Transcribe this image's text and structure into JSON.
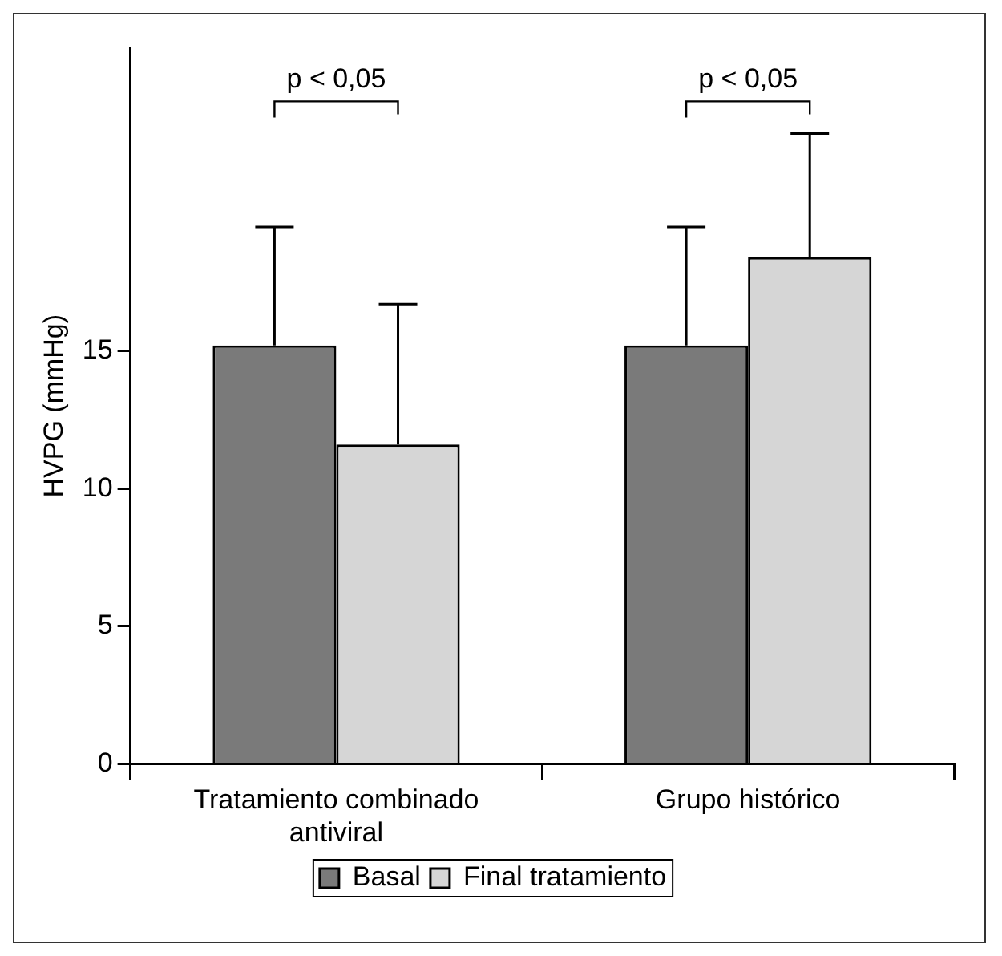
{
  "chart_data": {
    "type": "bar",
    "categories": [
      "Tratamiento combinado antiviral",
      "Grupo histórico"
    ],
    "series": [
      {
        "name": "Basal",
        "color": "#7a7a7a",
        "values": [
          15.2,
          15.2
        ],
        "errors": [
          4.3,
          4.3
        ]
      },
      {
        "name": "Final tratamiento",
        "color": "#d6d6d6",
        "values": [
          11.6,
          18.4
        ],
        "errors": [
          5.1,
          4.5
        ]
      }
    ],
    "ylabel": "HVPG (mmHg)",
    "ylim": [
      0,
      26
    ],
    "yticks": [
      0,
      5,
      10,
      15
    ],
    "annotations": [
      "p < 0,05",
      "p < 0,05"
    ],
    "grid": false,
    "legend": "bottom"
  }
}
